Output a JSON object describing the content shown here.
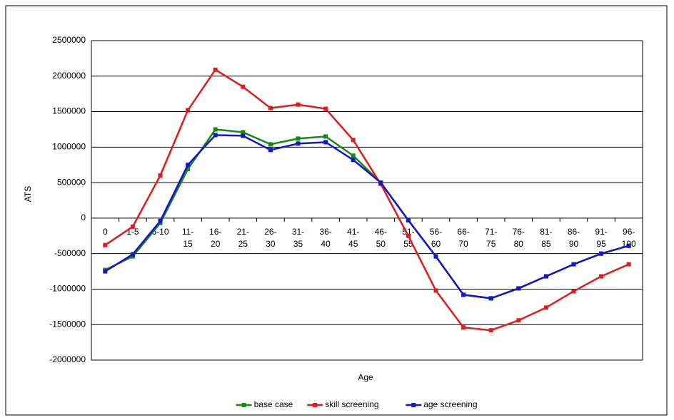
{
  "chart_data": {
    "type": "line",
    "x_label": "Age",
    "y_label": "ATS",
    "categories": [
      "0",
      "1-5",
      "6-10",
      "11-15",
      "16-20",
      "21-25",
      "26-30",
      "31-35",
      "36-40",
      "41-45",
      "46-50",
      "51-55",
      "56-60",
      "66-70",
      "71-75",
      "76-80",
      "81-85",
      "86-90",
      "91-95",
      "96-100"
    ],
    "series": [
      {
        "name": "base case",
        "color": "#138a13",
        "values": [
          -730000,
          -540000,
          -70000,
          690000,
          1250000,
          1210000,
          1040000,
          1120000,
          1150000,
          880000,
          500000,
          -30000,
          -540000,
          -1080000,
          -1130000,
          -990000,
          -820000,
          -650000,
          -500000,
          -390000
        ]
      },
      {
        "name": "skill screening",
        "color": "#e01b1b",
        "values": [
          -380000,
          -120000,
          600000,
          1520000,
          2090000,
          1850000,
          1550000,
          1600000,
          1540000,
          1100000,
          480000,
          -250000,
          -1020000,
          -1540000,
          -1580000,
          -1440000,
          -1260000,
          -1030000,
          -820000,
          -650000
        ]
      },
      {
        "name": "age screening",
        "color": "#1515cc",
        "values": [
          -750000,
          -510000,
          -40000,
          750000,
          1170000,
          1160000,
          960000,
          1050000,
          1070000,
          820000,
          500000,
          -30000,
          -540000,
          -1080000,
          -1130000,
          -990000,
          -820000,
          -650000,
          -500000,
          -390000
        ]
      }
    ],
    "ylim": [
      -2000000,
      2500000
    ],
    "yticks": [
      -2000000,
      -1500000,
      -1000000,
      -500000,
      0,
      500000,
      1000000,
      1500000,
      2000000,
      2500000
    ],
    "grid": true,
    "legend": "bottom"
  }
}
